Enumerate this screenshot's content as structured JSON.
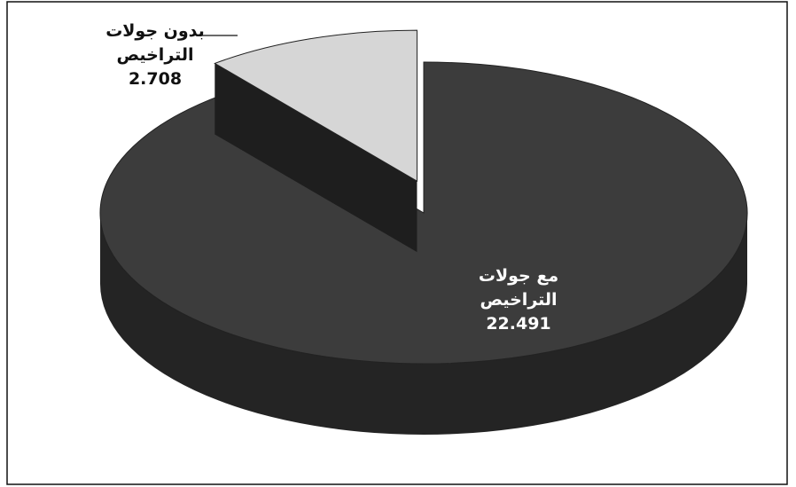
{
  "chart_data": {
    "type": "pie",
    "categories": [
      "بدون جولات التراخيص",
      "مع جولات التراخيص"
    ],
    "values": [
      2.708,
      22.491
    ],
    "colors": [
      "#d6d6d6",
      "#3c3c3c"
    ]
  }
}
